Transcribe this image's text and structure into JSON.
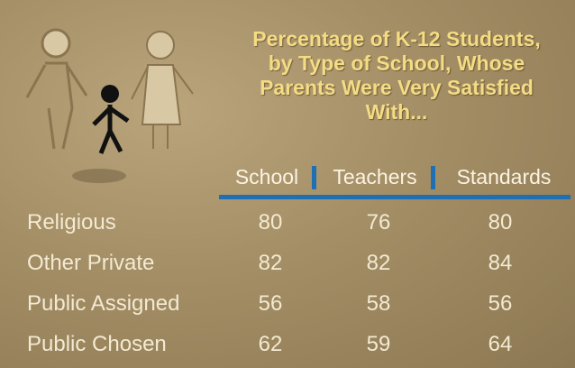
{
  "title_lines": [
    "Percentage of K-12 Students,",
    "by Type of School, Whose",
    "Parents Were Very Satisfied",
    "With..."
  ],
  "table": {
    "columns": [
      "School",
      "Teachers",
      "Standards"
    ],
    "rows": [
      {
        "label": "Religious",
        "values": [
          "80",
          "76",
          "80"
        ]
      },
      {
        "label": "Other Private",
        "values": [
          "82",
          "82",
          "84"
        ]
      },
      {
        "label": "Public Assigned",
        "values": [
          "56",
          "58",
          "56"
        ]
      },
      {
        "label": "Public Chosen",
        "values": [
          "62",
          "59",
          "64"
        ]
      }
    ]
  }
}
